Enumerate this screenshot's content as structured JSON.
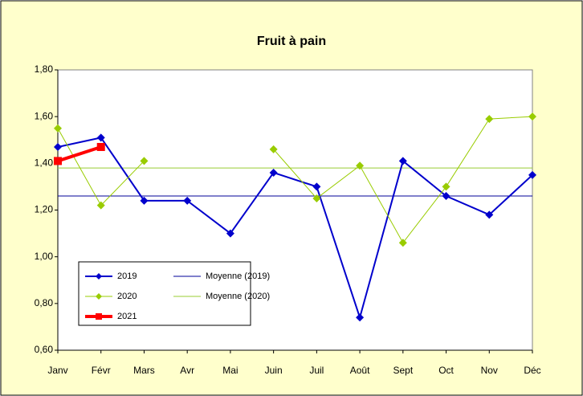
{
  "chart_data": {
    "type": "line",
    "title": "Fruit à pain",
    "categories": [
      "Janv",
      "Févr",
      "Mars",
      "Avr",
      "Mai",
      "Juin",
      "Juil",
      "Août",
      "Sept",
      "Oct",
      "Nov",
      "Déc"
    ],
    "series": [
      {
        "name": "2019",
        "color": "#0000cc",
        "marker": "diamond",
        "values": [
          1.47,
          1.51,
          1.24,
          1.24,
          1.1,
          1.36,
          1.3,
          0.74,
          1.41,
          1.26,
          1.18,
          1.35
        ]
      },
      {
        "name": "2020",
        "color": "#99cc00",
        "marker": "diamond",
        "values": [
          1.55,
          1.22,
          1.41,
          null,
          null,
          1.46,
          1.25,
          1.39,
          1.06,
          1.3,
          1.59,
          1.6
        ]
      },
      {
        "name": "2021",
        "color": "#ff0000",
        "marker": "square",
        "values": [
          1.41,
          1.47,
          null,
          null,
          null,
          null,
          null,
          null,
          null,
          null,
          null,
          null
        ]
      }
    ],
    "reference_lines": [
      {
        "name": "Moyenne (2019)",
        "color": "#000099",
        "value": 1.26
      },
      {
        "name": "Moyenne (2020)",
        "color": "#99cc33",
        "value": 1.38
      }
    ],
    "ylim": [
      0.6,
      1.8
    ],
    "yticks": [
      {
        "value": 0.6,
        "label": "0,60"
      },
      {
        "value": 0.8,
        "label": "0,80"
      },
      {
        "value": 1.0,
        "label": "1,00"
      },
      {
        "value": 1.2,
        "label": "1,20"
      },
      {
        "value": 1.4,
        "label": "1,40"
      },
      {
        "value": 1.6,
        "label": "1,60"
      },
      {
        "value": 1.8,
        "label": "1,80"
      }
    ],
    "grid": false
  }
}
